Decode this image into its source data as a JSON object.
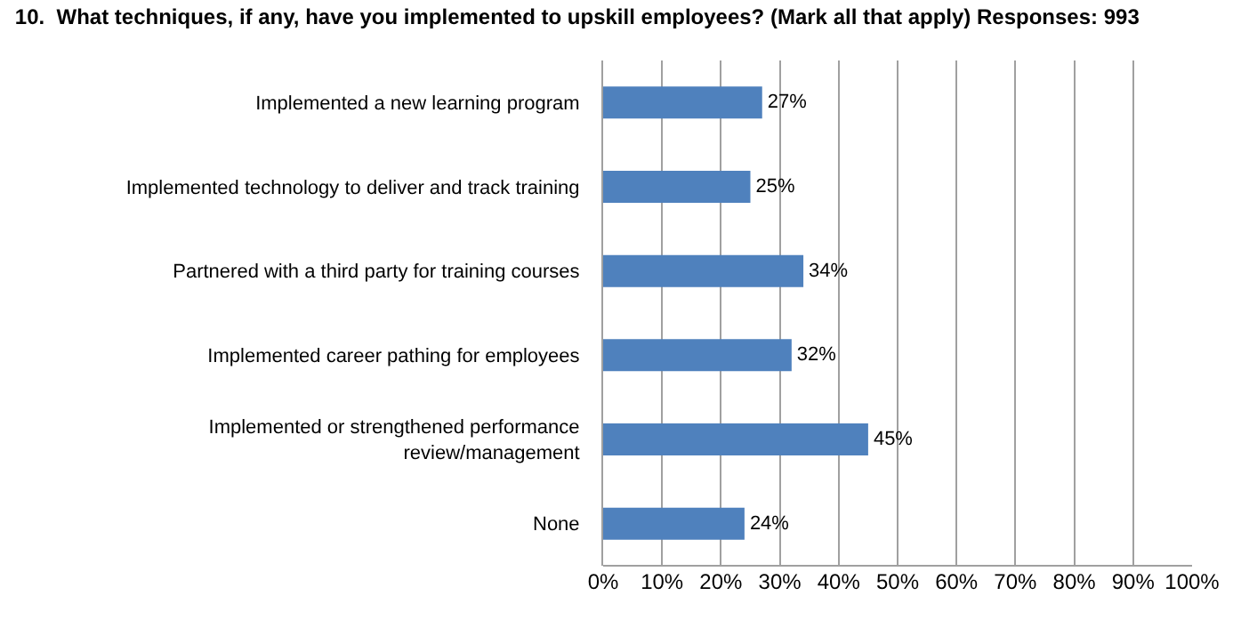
{
  "chart_data": {
    "type": "bar",
    "orientation": "horizontal",
    "title": "10.  What techniques, if any, have you implemented to upskill employees? (Mark all that apply) Responses: 993",
    "categories": [
      "Implemented a new learning program",
      "Implemented technology to deliver and track training",
      "Partnered with a third party for training courses",
      "Implemented career pathing for employees",
      "Implemented or strengthened performance review/management",
      "None"
    ],
    "values": [
      27,
      25,
      34,
      32,
      45,
      24
    ],
    "value_labels": [
      "27%",
      "25%",
      "34%",
      "32%",
      "45%",
      "24%"
    ],
    "color": "#4f81bd",
    "xlim": [
      0,
      100
    ],
    "xticks": [
      {
        "value": 0,
        "label": "0%"
      },
      {
        "value": 10,
        "label": "10%"
      },
      {
        "value": 20,
        "label": "20%"
      },
      {
        "value": 30,
        "label": "30%"
      },
      {
        "value": 40,
        "label": "40%"
      },
      {
        "value": 50,
        "label": "50%"
      },
      {
        "value": 60,
        "label": "60%"
      },
      {
        "value": 70,
        "label": "70%"
      },
      {
        "value": 80,
        "label": "80%"
      },
      {
        "value": 90,
        "label": "90%"
      },
      {
        "value": 100,
        "label": "100%"
      }
    ],
    "grid": "x"
  }
}
